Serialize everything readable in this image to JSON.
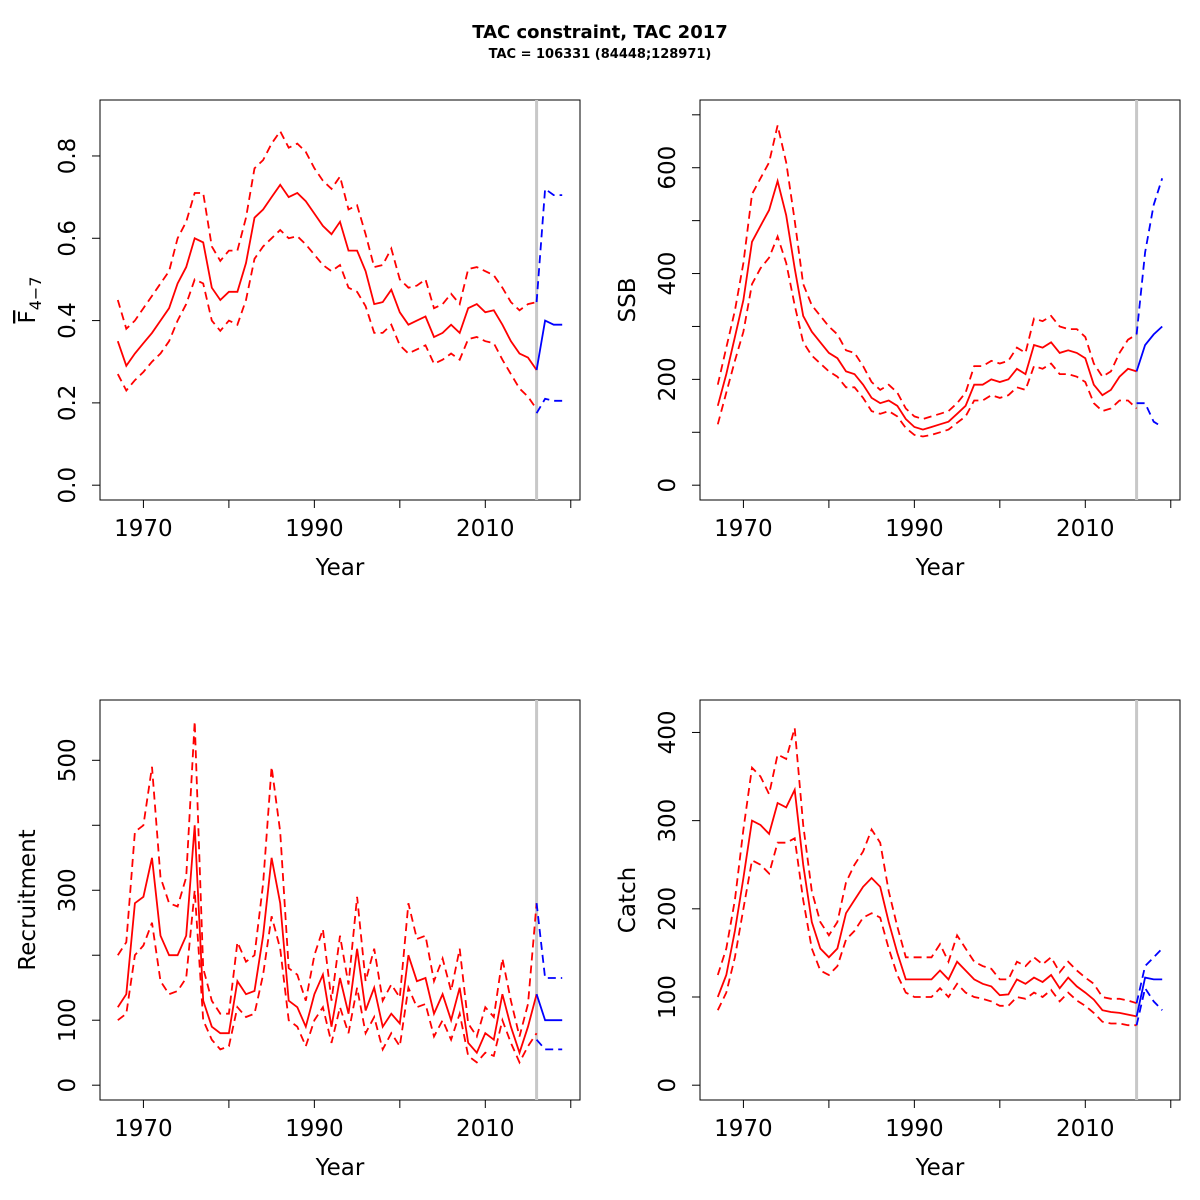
{
  "title": "TAC constraint, TAC 2017",
  "subtitle": "TAC = 106331 (84448;128971)",
  "colors": {
    "historical": "#ff0000",
    "forecast": "#0000ff",
    "divider": "#c8c8c8"
  },
  "chart_data": [
    {
      "type": "line",
      "ylabel": "F̄4−7",
      "ylabel_main": "F",
      "ylabel_sub": "4−7",
      "xlabel": "Year",
      "xlim": [
        1967,
        2019
      ],
      "ylim": [
        0,
        0.9
      ],
      "xticks": [
        1970,
        1980,
        1990,
        2000,
        2010,
        2020
      ],
      "xtick_labels": [
        "1970",
        "",
        "1990",
        "",
        "2010",
        ""
      ],
      "yticks": [
        0.0,
        0.2,
        0.4,
        0.6,
        0.8
      ],
      "ytick_labels": [
        "0.0",
        "0.2",
        "0.4",
        "0.6",
        "0.8"
      ],
      "divider_x": 2016,
      "historical": {
        "x": [
          1967,
          1968,
          1969,
          1970,
          1971,
          1972,
          1973,
          1974,
          1975,
          1976,
          1977,
          1978,
          1979,
          1980,
          1981,
          1982,
          1983,
          1984,
          1985,
          1986,
          1987,
          1988,
          1989,
          1990,
          1991,
          1992,
          1993,
          1994,
          1995,
          1996,
          1997,
          1998,
          1999,
          2000,
          2001,
          2002,
          2003,
          2004,
          2005,
          2006,
          2007,
          2008,
          2009,
          2010,
          2011,
          2012,
          2013,
          2014,
          2015,
          2016
        ],
        "estimate": [
          0.35,
          0.29,
          0.32,
          0.345,
          0.37,
          0.4,
          0.43,
          0.49,
          0.53,
          0.6,
          0.59,
          0.48,
          0.45,
          0.47,
          0.47,
          0.54,
          0.65,
          0.67,
          0.7,
          0.73,
          0.7,
          0.71,
          0.69,
          0.66,
          0.63,
          0.61,
          0.64,
          0.57,
          0.57,
          0.52,
          0.44,
          0.445,
          0.475,
          0.42,
          0.39,
          0.4,
          0.41,
          0.36,
          0.37,
          0.39,
          0.37,
          0.43,
          0.44,
          0.42,
          0.425,
          0.39,
          0.35,
          0.32,
          0.31,
          0.28
        ],
        "lower": [
          0.27,
          0.23,
          0.255,
          0.275,
          0.3,
          0.32,
          0.35,
          0.4,
          0.44,
          0.5,
          0.49,
          0.4,
          0.375,
          0.4,
          0.39,
          0.45,
          0.55,
          0.58,
          0.6,
          0.62,
          0.6,
          0.605,
          0.585,
          0.56,
          0.535,
          0.52,
          0.535,
          0.48,
          0.47,
          0.435,
          0.37,
          0.37,
          0.39,
          0.34,
          0.32,
          0.33,
          0.34,
          0.295,
          0.305,
          0.32,
          0.305,
          0.355,
          0.36,
          0.35,
          0.345,
          0.305,
          0.27,
          0.235,
          0.215,
          0.185
        ],
        "upper": [
          0.45,
          0.38,
          0.4,
          0.43,
          0.46,
          0.49,
          0.52,
          0.6,
          0.64,
          0.71,
          0.71,
          0.58,
          0.545,
          0.57,
          0.57,
          0.65,
          0.77,
          0.79,
          0.83,
          0.86,
          0.82,
          0.83,
          0.81,
          0.77,
          0.74,
          0.72,
          0.75,
          0.67,
          0.68,
          0.61,
          0.53,
          0.535,
          0.575,
          0.5,
          0.48,
          0.485,
          0.5,
          0.43,
          0.44,
          0.465,
          0.44,
          0.525,
          0.53,
          0.52,
          0.51,
          0.48,
          0.445,
          0.425,
          0.44,
          0.445
        ]
      },
      "forecast": {
        "x": [
          2016,
          2017,
          2018,
          2019
        ],
        "estimate": [
          0.28,
          0.4,
          0.39,
          0.39
        ],
        "lower": [
          0.175,
          0.21,
          0.205,
          0.205
        ],
        "upper": [
          0.445,
          0.72,
          0.705,
          0.705
        ]
      }
    },
    {
      "type": "line",
      "ylabel": "SSB",
      "xlabel": "Year",
      "xlim": [
        1967,
        2019
      ],
      "ylim": [
        0,
        700
      ],
      "xticks": [
        1970,
        1980,
        1990,
        2000,
        2010,
        2020
      ],
      "xtick_labels": [
        "1970",
        "",
        "1990",
        "",
        "2010",
        ""
      ],
      "yticks": [
        0,
        100,
        200,
        300,
        400,
        500,
        600,
        700
      ],
      "ytick_labels": [
        "0",
        "",
        "200",
        "",
        "400",
        "",
        "600",
        ""
      ],
      "divider_x": 2016,
      "historical": {
        "x": [
          1967,
          1968,
          1969,
          1970,
          1971,
          1972,
          1973,
          1974,
          1975,
          1976,
          1977,
          1978,
          1979,
          1980,
          1981,
          1982,
          1983,
          1984,
          1985,
          1986,
          1987,
          1988,
          1989,
          1990,
          1991,
          1992,
          1993,
          1994,
          1995,
          1996,
          1997,
          1998,
          1999,
          2000,
          2001,
          2002,
          2003,
          2004,
          2005,
          2006,
          2007,
          2008,
          2009,
          2010,
          2011,
          2012,
          2013,
          2014,
          2015,
          2016
        ],
        "estimate": [
          150,
          210,
          280,
          350,
          460,
          490,
          520,
          575,
          510,
          410,
          320,
          290,
          270,
          250,
          240,
          215,
          210,
          190,
          165,
          155,
          160,
          150,
          125,
          110,
          105,
          110,
          115,
          120,
          135,
          150,
          190,
          190,
          200,
          195,
          200,
          220,
          210,
          265,
          260,
          270,
          250,
          255,
          250,
          240,
          190,
          170,
          180,
          205,
          220,
          215
        ],
        "lower": [
          115,
          175,
          235,
          290,
          380,
          410,
          430,
          470,
          420,
          340,
          270,
          245,
          230,
          215,
          205,
          185,
          185,
          165,
          140,
          135,
          140,
          130,
          108,
          95,
          92,
          95,
          100,
          105,
          118,
          130,
          160,
          160,
          170,
          165,
          170,
          185,
          180,
          225,
          220,
          230,
          210,
          210,
          205,
          195,
          155,
          140,
          145,
          160,
          160,
          145
        ],
        "upper": [
          190,
          260,
          330,
          420,
          550,
          580,
          610,
          680,
          610,
          500,
          380,
          340,
          320,
          300,
          285,
          255,
          250,
          225,
          195,
          180,
          190,
          175,
          145,
          130,
          125,
          130,
          135,
          140,
          155,
          175,
          225,
          225,
          235,
          230,
          235,
          260,
          250,
          315,
          310,
          320,
          300,
          295,
          295,
          280,
          230,
          205,
          215,
          250,
          275,
          285
        ]
      },
      "forecast": {
        "x": [
          2016,
          2017,
          2018,
          2019
        ],
        "estimate": [
          215,
          265,
          285,
          300
        ],
        "lower": [
          155,
          155,
          120,
          110
        ],
        "upper": [
          285,
          440,
          530,
          580
        ]
      }
    },
    {
      "type": "line",
      "ylabel": "Recruitment",
      "xlabel": "Year",
      "xlim": [
        1967,
        2019
      ],
      "ylim": [
        0,
        570
      ],
      "xticks": [
        1970,
        1980,
        1990,
        2000,
        2010,
        2020
      ],
      "xtick_labels": [
        "1970",
        "",
        "1990",
        "",
        "2010",
        ""
      ],
      "yticks": [
        0,
        100,
        200,
        300,
        400,
        500
      ],
      "ytick_labels": [
        "0",
        "100",
        "",
        "300",
        "",
        "500"
      ],
      "divider_x": 2016,
      "historical": {
        "x": [
          1967,
          1968,
          1969,
          1970,
          1971,
          1972,
          1973,
          1974,
          1975,
          1976,
          1977,
          1978,
          1979,
          1980,
          1981,
          1982,
          1983,
          1984,
          1985,
          1986,
          1987,
          1988,
          1989,
          1990,
          1991,
          1992,
          1993,
          1994,
          1995,
          1996,
          1997,
          1998,
          1999,
          2000,
          2001,
          2002,
          2003,
          2004,
          2005,
          2006,
          2007,
          2008,
          2009,
          2010,
          2011,
          2012,
          2013,
          2014,
          2015,
          2016
        ],
        "estimate": [
          120,
          140,
          280,
          290,
          350,
          230,
          200,
          200,
          230,
          400,
          130,
          90,
          80,
          80,
          160,
          140,
          145,
          230,
          350,
          280,
          130,
          120,
          90,
          140,
          170,
          90,
          165,
          110,
          210,
          115,
          150,
          90,
          110,
          95,
          200,
          160,
          165,
          110,
          140,
          100,
          150,
          65,
          50,
          80,
          70,
          140,
          90,
          50,
          90,
          140
        ],
        "lower": [
          100,
          110,
          200,
          215,
          250,
          160,
          140,
          145,
          165,
          300,
          100,
          70,
          55,
          60,
          120,
          105,
          110,
          170,
          260,
          210,
          100,
          90,
          60,
          100,
          120,
          65,
          120,
          80,
          150,
          80,
          105,
          55,
          80,
          60,
          150,
          120,
          125,
          75,
          100,
          70,
          110,
          45,
          35,
          50,
          45,
          100,
          65,
          35,
          60,
          80
        ],
        "upper": [
          200,
          220,
          390,
          400,
          490,
          320,
          280,
          275,
          320,
          560,
          180,
          130,
          110,
          110,
          220,
          190,
          200,
          310,
          490,
          390,
          180,
          170,
          130,
          200,
          240,
          130,
          230,
          155,
          290,
          160,
          210,
          130,
          155,
          135,
          280,
          225,
          230,
          160,
          195,
          145,
          210,
          95,
          75,
          120,
          105,
          195,
          130,
          75,
          125,
          280
        ]
      },
      "forecast": {
        "x": [
          2016,
          2017,
          2018,
          2019
        ],
        "estimate": [
          140,
          100,
          100,
          100
        ],
        "lower": [
          70,
          55,
          55,
          55
        ],
        "upper": [
          280,
          165,
          165,
          165
        ]
      }
    },
    {
      "type": "line",
      "ylabel": "Catch",
      "xlabel": "Year",
      "xlim": [
        1967,
        2019
      ],
      "ylim": [
        0,
        420
      ],
      "xticks": [
        1970,
        1980,
        1990,
        2000,
        2010,
        2020
      ],
      "xtick_labels": [
        "1970",
        "",
        "1990",
        "",
        "2010",
        ""
      ],
      "yticks": [
        0,
        100,
        200,
        300,
        400
      ],
      "ytick_labels": [
        "0",
        "100",
        "200",
        "300",
        "400"
      ],
      "divider_x": 2016,
      "historical": {
        "x": [
          1967,
          1968,
          1969,
          1970,
          1971,
          1972,
          1973,
          1974,
          1975,
          1976,
          1977,
          1978,
          1979,
          1980,
          1981,
          1982,
          1983,
          1984,
          1985,
          1986,
          1987,
          1988,
          1989,
          1990,
          1991,
          1992,
          1993,
          1994,
          1995,
          1996,
          1997,
          1998,
          1999,
          2000,
          2001,
          2002,
          2003,
          2004,
          2005,
          2006,
          2007,
          2008,
          2009,
          2010,
          2011,
          2012,
          2013,
          2014,
          2015,
          2016
        ],
        "estimate": [
          100,
          125,
          175,
          235,
          300,
          295,
          285,
          320,
          315,
          335,
          250,
          185,
          155,
          145,
          155,
          195,
          210,
          225,
          235,
          225,
          185,
          150,
          120,
          120,
          120,
          120,
          130,
          120,
          140,
          130,
          120,
          115,
          112,
          102,
          103,
          120,
          115,
          122,
          117,
          125,
          110,
          122,
          112,
          105,
          97,
          85,
          83,
          82,
          80,
          78
        ],
        "lower": [
          85,
          105,
          145,
          200,
          255,
          250,
          240,
          275,
          275,
          280,
          210,
          155,
          130,
          125,
          135,
          165,
          175,
          190,
          195,
          190,
          155,
          125,
          105,
          100,
          100,
          100,
          110,
          100,
          115,
          105,
          100,
          98,
          95,
          90,
          90,
          100,
          98,
          105,
          100,
          108,
          95,
          105,
          96,
          90,
          82,
          72,
          70,
          70,
          68,
          68
        ],
        "upper": [
          125,
          155,
          210,
          290,
          360,
          350,
          330,
          375,
          370,
          405,
          295,
          220,
          185,
          170,
          185,
          230,
          250,
          265,
          290,
          275,
          220,
          180,
          145,
          145,
          145,
          145,
          160,
          140,
          170,
          155,
          140,
          135,
          132,
          120,
          120,
          140,
          135,
          145,
          137,
          145,
          128,
          140,
          130,
          122,
          115,
          100,
          98,
          98,
          96,
          93
        ]
      },
      "forecast": {
        "x": [
          2016,
          2017,
          2018,
          2019
        ],
        "estimate": [
          78,
          122,
          120,
          120
        ],
        "lower": [
          68,
          110,
          95,
          85
        ],
        "upper": [
          93,
          135,
          145,
          155
        ]
      }
    }
  ]
}
